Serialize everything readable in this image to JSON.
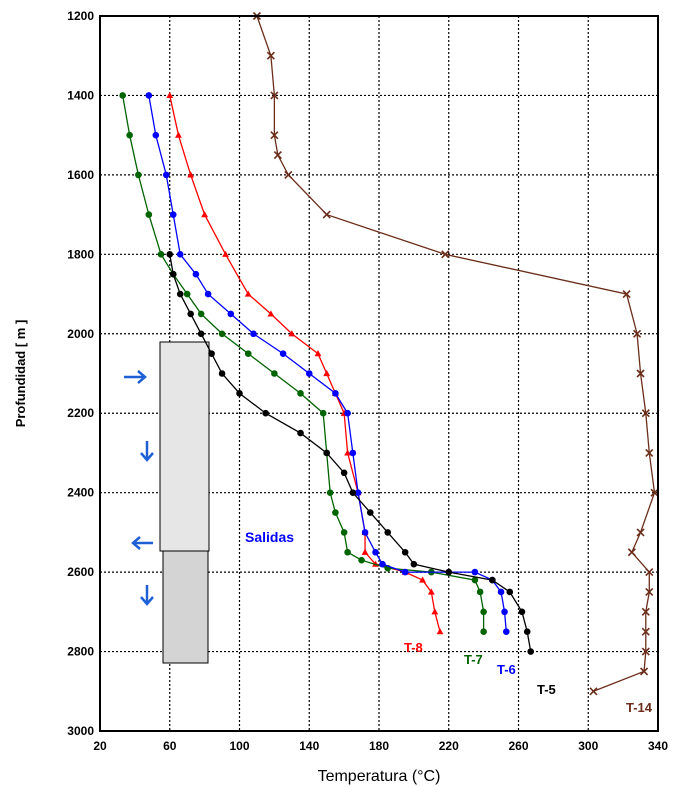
{
  "chart_data": {
    "type": "line",
    "xlabel": "Temperatura (°C)",
    "ylabel": "Profundidad  [ m ]",
    "xlim": [
      20,
      340
    ],
    "ylim": [
      1200,
      3000
    ],
    "y_inverted": true,
    "xticks": [
      20,
      60,
      100,
      140,
      180,
      220,
      260,
      300,
      340
    ],
    "yticks": [
      1200,
      1400,
      1600,
      1800,
      2000,
      2200,
      2400,
      2600,
      2800,
      3000
    ],
    "grid": true,
    "series": [
      {
        "name": "T-8",
        "color": "#ff0000",
        "marker": "triangle",
        "points": [
          [
            60,
            1400
          ],
          [
            65,
            1500
          ],
          [
            72,
            1600
          ],
          [
            80,
            1700
          ],
          [
            92,
            1800
          ],
          [
            105,
            1900
          ],
          [
            118,
            1950
          ],
          [
            130,
            2000
          ],
          [
            145,
            2050
          ],
          [
            150,
            2100
          ],
          [
            155,
            2150
          ],
          [
            160,
            2200
          ],
          [
            162,
            2300
          ],
          [
            168,
            2400
          ],
          [
            172,
            2500
          ],
          [
            172,
            2550
          ],
          [
            178,
            2580
          ],
          [
            195,
            2600
          ],
          [
            205,
            2620
          ],
          [
            210,
            2650
          ],
          [
            212,
            2700
          ],
          [
            215,
            2750
          ]
        ]
      },
      {
        "name": "T-7",
        "color": "#006400",
        "marker": "circle",
        "points": [
          [
            33,
            1400
          ],
          [
            37,
            1500
          ],
          [
            42,
            1600
          ],
          [
            48,
            1700
          ],
          [
            55,
            1800
          ],
          [
            62,
            1850
          ],
          [
            70,
            1900
          ],
          [
            78,
            1950
          ],
          [
            90,
            2000
          ],
          [
            105,
            2050
          ],
          [
            120,
            2100
          ],
          [
            135,
            2150
          ],
          [
            148,
            2200
          ],
          [
            150,
            2300
          ],
          [
            152,
            2400
          ],
          [
            155,
            2450
          ],
          [
            160,
            2500
          ],
          [
            162,
            2550
          ],
          [
            170,
            2570
          ],
          [
            185,
            2590
          ],
          [
            210,
            2600
          ],
          [
            235,
            2620
          ],
          [
            238,
            2650
          ],
          [
            240,
            2700
          ],
          [
            240,
            2750
          ]
        ]
      },
      {
        "name": "T-6",
        "color": "#0000ff",
        "marker": "circle",
        "points": [
          [
            48,
            1400
          ],
          [
            52,
            1500
          ],
          [
            58,
            1600
          ],
          [
            62,
            1700
          ],
          [
            66,
            1800
          ],
          [
            75,
            1850
          ],
          [
            82,
            1900
          ],
          [
            95,
            1950
          ],
          [
            108,
            2000
          ],
          [
            125,
            2050
          ],
          [
            140,
            2100
          ],
          [
            155,
            2150
          ],
          [
            162,
            2200
          ],
          [
            165,
            2300
          ],
          [
            168,
            2400
          ],
          [
            172,
            2500
          ],
          [
            178,
            2550
          ],
          [
            182,
            2580
          ],
          [
            195,
            2600
          ],
          [
            235,
            2600
          ],
          [
            245,
            2620
          ],
          [
            250,
            2650
          ],
          [
            252,
            2700
          ],
          [
            253,
            2750
          ]
        ]
      },
      {
        "name": "T-5",
        "color": "#000000",
        "marker": "circle",
        "points": [
          [
            60,
            1800
          ],
          [
            62,
            1850
          ],
          [
            66,
            1900
          ],
          [
            72,
            1950
          ],
          [
            78,
            2000
          ],
          [
            84,
            2050
          ],
          [
            90,
            2100
          ],
          [
            100,
            2150
          ],
          [
            115,
            2200
          ],
          [
            135,
            2250
          ],
          [
            150,
            2300
          ],
          [
            160,
            2350
          ],
          [
            165,
            2400
          ],
          [
            175,
            2450
          ],
          [
            185,
            2500
          ],
          [
            195,
            2550
          ],
          [
            200,
            2580
          ],
          [
            220,
            2600
          ],
          [
            245,
            2620
          ],
          [
            255,
            2650
          ],
          [
            262,
            2700
          ],
          [
            265,
            2750
          ],
          [
            267,
            2800
          ]
        ]
      },
      {
        "name": "T-14",
        "color": "#6b2e1a",
        "marker": "x",
        "points": [
          [
            110,
            1200
          ],
          [
            118,
            1300
          ],
          [
            120,
            1400
          ],
          [
            120,
            1500
          ],
          [
            122,
            1550
          ],
          [
            128,
            1600
          ],
          [
            150,
            1700
          ],
          [
            218,
            1800
          ],
          [
            322,
            1900
          ],
          [
            328,
            2000
          ],
          [
            330,
            2100
          ],
          [
            333,
            2200
          ],
          [
            335,
            2300
          ],
          [
            338,
            2400
          ],
          [
            330,
            2500
          ],
          [
            325,
            2550
          ],
          [
            335,
            2600
          ],
          [
            335,
            2650
          ],
          [
            333,
            2700
          ],
          [
            333,
            2750
          ],
          [
            333,
            2800
          ],
          [
            332,
            2850
          ],
          [
            303,
            2900
          ]
        ]
      }
    ],
    "annotations": [
      {
        "text": "Salidas",
        "color": "#0000ff"
      }
    ],
    "casing_color_upper": "#e6e6e6",
    "casing_color_lower": "#d4d4d4",
    "arrow_color": "#1f5fd6"
  }
}
